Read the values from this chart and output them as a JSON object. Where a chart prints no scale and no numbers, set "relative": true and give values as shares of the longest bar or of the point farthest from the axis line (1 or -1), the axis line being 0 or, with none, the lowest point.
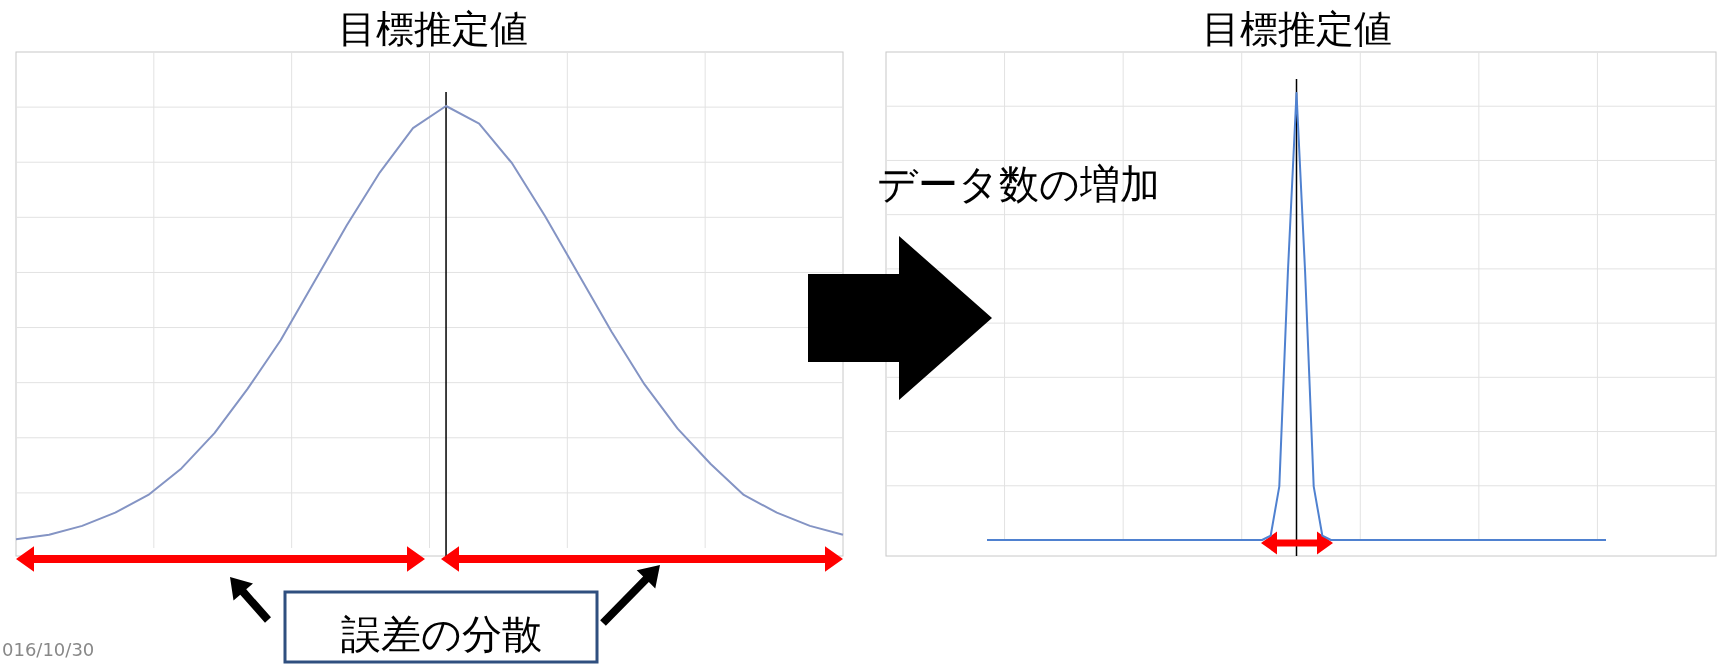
{
  "chart_data": [
    {
      "type": "line",
      "title": "目標推定値",
      "relative": true,
      "grid": true,
      "marker": "none",
      "line_style": "solid",
      "categories": [
        null,
        null,
        null,
        null,
        null,
        null,
        null,
        null,
        null,
        null,
        null,
        null,
        null,
        null,
        null,
        null,
        null,
        null,
        null,
        null,
        null,
        null,
        null,
        null,
        null,
        null
      ],
      "series": [
        {
          "color": "#8494c4",
          "values": [
            0.02,
            0.03,
            0.05,
            0.08,
            0.12,
            0.18,
            0.26,
            0.36,
            0.47,
            0.6,
            0.73,
            0.85,
            0.95,
            1.0,
            0.96,
            0.87,
            0.75,
            0.62,
            0.49,
            0.37,
            0.27,
            0.19,
            0.12,
            0.08,
            0.05,
            0.03
          ]
        }
      ],
      "annotations": [
        "誤差の分散",
        "016/10/30"
      ]
    },
    {
      "type": "line",
      "title": "目標推定値",
      "relative": true,
      "grid": true,
      "marker": "none",
      "line_style": "solid",
      "categories": [
        null,
        null,
        null,
        null,
        null,
        null,
        null,
        null,
        null,
        null,
        null,
        null,
        null,
        null,
        null,
        null,
        null,
        null,
        null,
        null,
        null,
        null,
        null,
        null,
        null,
        null,
        null,
        null,
        null,
        null,
        null,
        null,
        null,
        null,
        null,
        null,
        null,
        null,
        null,
        null,
        null,
        null,
        null,
        null,
        null,
        null,
        null,
        null,
        null,
        null,
        null,
        null,
        null,
        null,
        null,
        null,
        null,
        null,
        null,
        null,
        null,
        null,
        null,
        null,
        null,
        null,
        null,
        null,
        null,
        null,
        null,
        null,
        null
      ],
      "series": [
        {
          "color": "#4f81d0",
          "values": [
            0,
            0,
            0,
            0,
            0,
            0,
            0,
            0,
            0,
            0,
            0,
            0,
            0,
            0,
            0,
            0,
            0,
            0,
            0,
            0,
            0,
            0,
            0,
            0,
            0,
            0,
            0,
            0,
            0,
            0,
            0,
            0,
            0,
            0.01,
            0.12,
            0.6,
            1.0,
            0.6,
            0.12,
            0.01,
            0,
            0,
            0,
            0,
            0,
            0,
            0,
            0,
            0,
            0,
            0,
            0,
            0,
            0,
            0,
            0,
            0,
            0,
            0,
            0,
            0,
            0,
            0,
            0,
            0,
            0,
            0,
            0,
            0,
            0,
            0,
            0,
            0
          ]
        }
      ],
      "annotations": [
        "データ数の増加"
      ]
    }
  ]
}
